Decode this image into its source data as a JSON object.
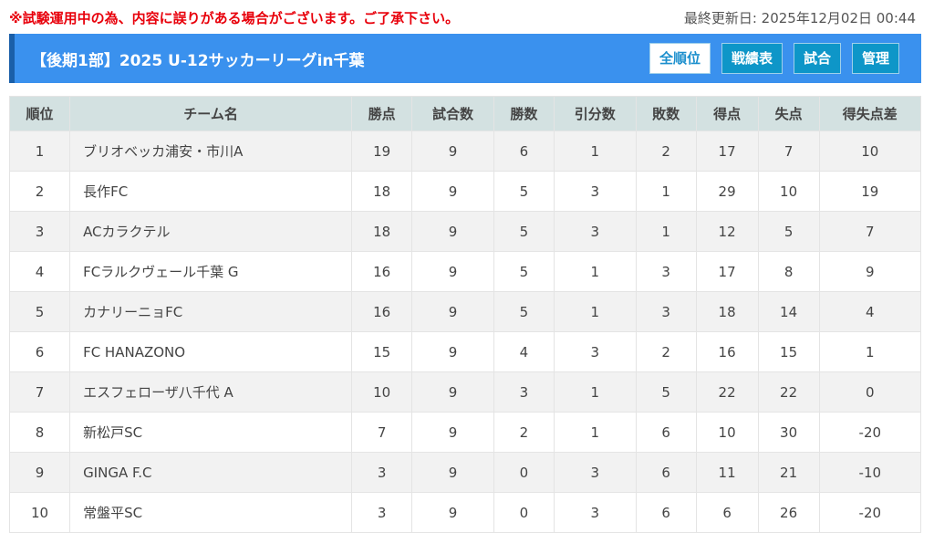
{
  "notice": "※試験運用中の為、内容に誤りがある場合がございます。ご了承下さい。",
  "updated": "最終更新日: 2025年12月02日 00:44",
  "title": "【後期1部】2025 U-12サッカーリーグin千葉",
  "buttons": [
    "全順位",
    "戦績表",
    "試合",
    "管理"
  ],
  "active_button": "全順位",
  "columns": [
    "順位",
    "チーム名",
    "勝点",
    "試合数",
    "勝数",
    "引分数",
    "敗数",
    "得点",
    "失点",
    "得失点差"
  ],
  "rows": [
    [
      "1",
      "ブリオベッカ浦安・市川A",
      "19",
      "9",
      "6",
      "1",
      "2",
      "17",
      "7",
      "10"
    ],
    [
      "2",
      "長作FC",
      "18",
      "9",
      "5",
      "3",
      "1",
      "29",
      "10",
      "19"
    ],
    [
      "3",
      "ACカラクテル",
      "18",
      "9",
      "5",
      "3",
      "1",
      "12",
      "5",
      "7"
    ],
    [
      "4",
      "FCラルクヴェール千葉 G",
      "16",
      "9",
      "5",
      "1",
      "3",
      "17",
      "8",
      "9"
    ],
    [
      "5",
      "カナリーニョFC",
      "16",
      "9",
      "5",
      "1",
      "3",
      "18",
      "14",
      "4"
    ],
    [
      "6",
      "FC HANAZONO",
      "15",
      "9",
      "4",
      "3",
      "2",
      "16",
      "15",
      "1"
    ],
    [
      "7",
      "エスフェローザ八千代 A",
      "10",
      "9",
      "3",
      "1",
      "5",
      "22",
      "22",
      "0"
    ],
    [
      "8",
      "新松戸SC",
      "7",
      "9",
      "2",
      "1",
      "6",
      "10",
      "30",
      "-20"
    ],
    [
      "9",
      "GINGA F.C",
      "3",
      "9",
      "0",
      "3",
      "6",
      "11",
      "21",
      "-10"
    ],
    [
      "10",
      "常盤平SC",
      "3",
      "9",
      "0",
      "3",
      "6",
      "6",
      "26",
      "-20"
    ]
  ]
}
